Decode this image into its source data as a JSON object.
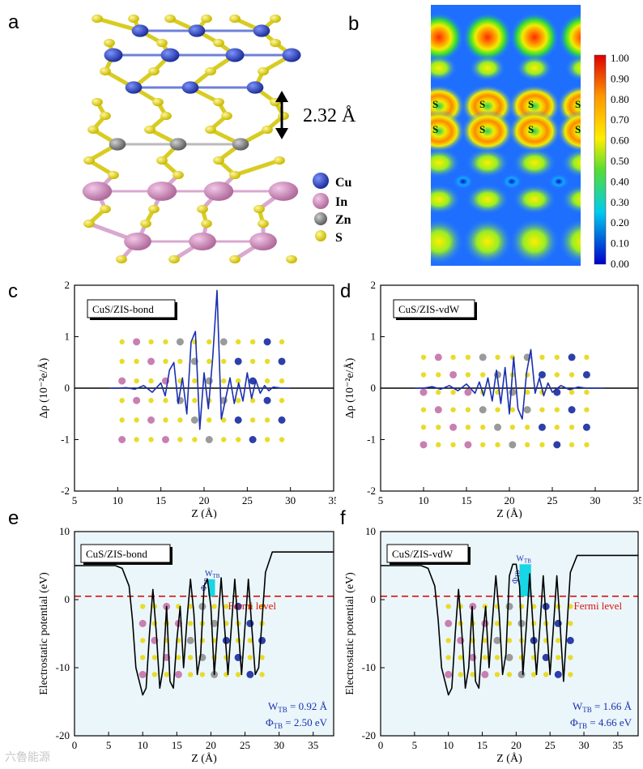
{
  "panel_labels": {
    "a": "a",
    "b": "b",
    "c": "c",
    "d": "d",
    "e": "e",
    "f": "f"
  },
  "panel_a": {
    "distance_label": "2.32 Å",
    "legend": [
      {
        "symbol": "Cu",
        "color": "#2b48b8"
      },
      {
        "symbol": "In",
        "color": "#d28fc0"
      },
      {
        "symbol": "Zn",
        "color": "#8c8c8c"
      },
      {
        "symbol": "S",
        "color": "#e6dc2e"
      }
    ]
  },
  "panel_b": {
    "colorbar_ticks": [
      "1.00",
      "0.90",
      "0.80",
      "0.70",
      "0.60",
      "0.50",
      "0.40",
      "0.30",
      "0.20",
      "0.10",
      "0.00"
    ],
    "atom_labels": [
      "S",
      "S",
      "S",
      "S",
      "S",
      "S",
      "S",
      "S"
    ]
  },
  "chart_data": [
    {
      "id": "c",
      "type": "line",
      "legend": "CuS/ZIS-bond",
      "xlabel": "Z (Å)",
      "ylabel": "Δρ (10⁻²e/Å)",
      "xlim": [
        5,
        35
      ],
      "ylim": [
        -2,
        2
      ],
      "xticks": [
        "5",
        "10",
        "15",
        "20",
        "25",
        "30",
        "35"
      ],
      "yticks": [
        "2",
        "1",
        "0",
        "-1",
        "-2"
      ],
      "series": [
        {
          "color": "#1a2fb0",
          "x": [
            9,
            10,
            11,
            12,
            13,
            14,
            15,
            15.5,
            16,
            16.5,
            17,
            17.5,
            18,
            18.5,
            19,
            19.5,
            20,
            20.5,
            21,
            21.5,
            22,
            22.5,
            23,
            23.5,
            24,
            24.5,
            25,
            25.5,
            26,
            26.5,
            27,
            27.5,
            28,
            29,
            30
          ],
          "y": [
            0,
            0,
            0.01,
            -0.02,
            0.05,
            -0.08,
            0.1,
            -0.15,
            0.35,
            0.5,
            -0.3,
            0.2,
            -0.5,
            0.9,
            1.1,
            -0.8,
            0.3,
            -0.4,
            0.6,
            1.9,
            -0.6,
            -0.2,
            0.2,
            -0.3,
            0.1,
            -0.25,
            0.3,
            -0.2,
            0.15,
            -0.1,
            0.05,
            -0.05,
            0.02,
            0,
            0
          ]
        }
      ]
    },
    {
      "id": "d",
      "type": "line",
      "legend": "CuS/ZIS-vdW",
      "xlabel": "Z (Å)",
      "ylabel": "Δρ (10⁻²e/Å)",
      "xlim": [
        5,
        35
      ],
      "ylim": [
        -2,
        2
      ],
      "xticks": [
        "5",
        "10",
        "15",
        "20",
        "25",
        "30",
        "35"
      ],
      "yticks": [
        "2",
        "1",
        "0",
        "-1",
        "-2"
      ],
      "series": [
        {
          "color": "#1a2fb0",
          "x": [
            9,
            10,
            11,
            12,
            13,
            14,
            15,
            16,
            16.5,
            17,
            17.5,
            18,
            18.5,
            19,
            19.5,
            20,
            20.5,
            21,
            21.5,
            22,
            22.5,
            23,
            23.5,
            24,
            24.5,
            25,
            26,
            27,
            28,
            29,
            30,
            31
          ],
          "y": [
            0,
            0,
            0.03,
            -0.02,
            0.05,
            -0.05,
            0.08,
            -0.1,
            0.12,
            -0.15,
            0.2,
            -0.25,
            0.35,
            -0.3,
            0.4,
            -0.5,
            0.6,
            -0.4,
            -0.6,
            0.3,
            0.75,
            -0.1,
            0.2,
            -0.15,
            0.1,
            -0.08,
            0.05,
            -0.03,
            0.02,
            0,
            0,
            0
          ]
        }
      ]
    },
    {
      "id": "e",
      "type": "line",
      "legend": "CuS/ZIS-bond",
      "xlabel": "Z (Å)",
      "ylabel": "Electrostatic potential (eV)",
      "xlim": [
        0,
        38
      ],
      "ylim": [
        -20,
        10
      ],
      "xticks": [
        "0",
        "5",
        "10",
        "15",
        "20",
        "25",
        "30",
        "35"
      ],
      "yticks": [
        "10",
        "0",
        "-10",
        "-20"
      ],
      "fermi_level": 0.5,
      "fermi_label": "Fermi level",
      "barrier_label": "W",
      "barrier_label_sub": "TB",
      "phi_label": "Φ",
      "phi_label_sub": "TB",
      "annotation_w": "W",
      "annotation_w_sub": "TB",
      "annotation_w_value": " = 0.92 Å",
      "annotation_phi": "Φ",
      "annotation_phi_sub": "TB",
      "annotation_phi_value": " = 2.50 eV",
      "barrier": {
        "x0": 19.6,
        "x1": 20.6,
        "top": 3.0
      },
      "series": [
        {
          "color": "#000000",
          "x": [
            0,
            6,
            7,
            8,
            8.5,
            9,
            9.5,
            10,
            10.5,
            11,
            11.5,
            12,
            12.5,
            13,
            13.5,
            14,
            14.5,
            15,
            15.5,
            16,
            16.5,
            17,
            17.5,
            18,
            18.5,
            19,
            19.5,
            20,
            20.5,
            21,
            21.5,
            22,
            22.5,
            23,
            23.5,
            24,
            24.5,
            25,
            25.5,
            26,
            26.5,
            27,
            27.5,
            28,
            29,
            30,
            38
          ],
          "y": [
            5,
            5,
            4.6,
            2,
            -3,
            -10,
            -12,
            -14,
            -13,
            -5,
            1.5,
            -5,
            -13,
            -10,
            -1,
            -12,
            -13,
            -6,
            -1,
            -10,
            -3,
            3,
            -2,
            -11,
            -8,
            2,
            3,
            -1,
            -11,
            -4,
            3.2,
            -4,
            -11,
            -4,
            3,
            -4,
            -11,
            -4,
            3,
            -4,
            -11,
            -10,
            -3,
            4,
            7,
            7,
            7
          ]
        }
      ]
    },
    {
      "id": "f",
      "type": "line",
      "legend": "CuS/ZIS-vdW",
      "xlabel": "Z (Å)",
      "ylabel": "Electrostatic potential (eV)",
      "xlim": [
        0,
        38
      ],
      "ylim": [
        -20,
        10
      ],
      "xticks": [
        "0",
        "5",
        "10",
        "15",
        "20",
        "25",
        "30",
        "35"
      ],
      "yticks": [
        "10",
        "0",
        "-10",
        "-20"
      ],
      "fermi_level": 0.5,
      "fermi_label": "Fermi level",
      "barrier_label": "W",
      "barrier_label_sub": "TB",
      "phi_label": "Φ",
      "phi_label_sub": "TB",
      "annotation_w": "W",
      "annotation_w_sub": "TB",
      "annotation_w_value": " = 1.66 Å",
      "annotation_phi": "Φ",
      "annotation_phi_sub": "TB",
      "annotation_phi_value": " = 4.66 eV",
      "barrier": {
        "x0": 20.5,
        "x1": 22.2,
        "top": 5.2
      },
      "series": [
        {
          "color": "#000000",
          "x": [
            0,
            6,
            7,
            8,
            8.5,
            9,
            9.5,
            10,
            10.5,
            11,
            11.5,
            12,
            12.5,
            13,
            13.5,
            14,
            14.5,
            15,
            15.5,
            16,
            16.5,
            17,
            17.5,
            18,
            18.5,
            19,
            19.5,
            20,
            20.5,
            21,
            21.5,
            22,
            22.5,
            23,
            23.5,
            24,
            24.5,
            25,
            25.5,
            26,
            26.5,
            27,
            27.5,
            28,
            29,
            30,
            38
          ],
          "y": [
            5,
            5,
            4.6,
            2,
            -3,
            -10,
            -12,
            -14,
            -13,
            -5,
            1.5,
            -5,
            -13,
            -10,
            -1,
            -12,
            -13,
            -6,
            -1,
            -10,
            -3,
            3.5,
            -2,
            -11,
            -8,
            3.5,
            5.2,
            5.2,
            2,
            -11,
            -4,
            3.8,
            -4,
            -11,
            -4,
            3.5,
            -4,
            -11,
            -4,
            3.5,
            -4,
            -12,
            -4,
            4,
            6.5,
            6.5,
            6.5
          ]
        }
      ]
    }
  ],
  "watermark": "六魯能源"
}
